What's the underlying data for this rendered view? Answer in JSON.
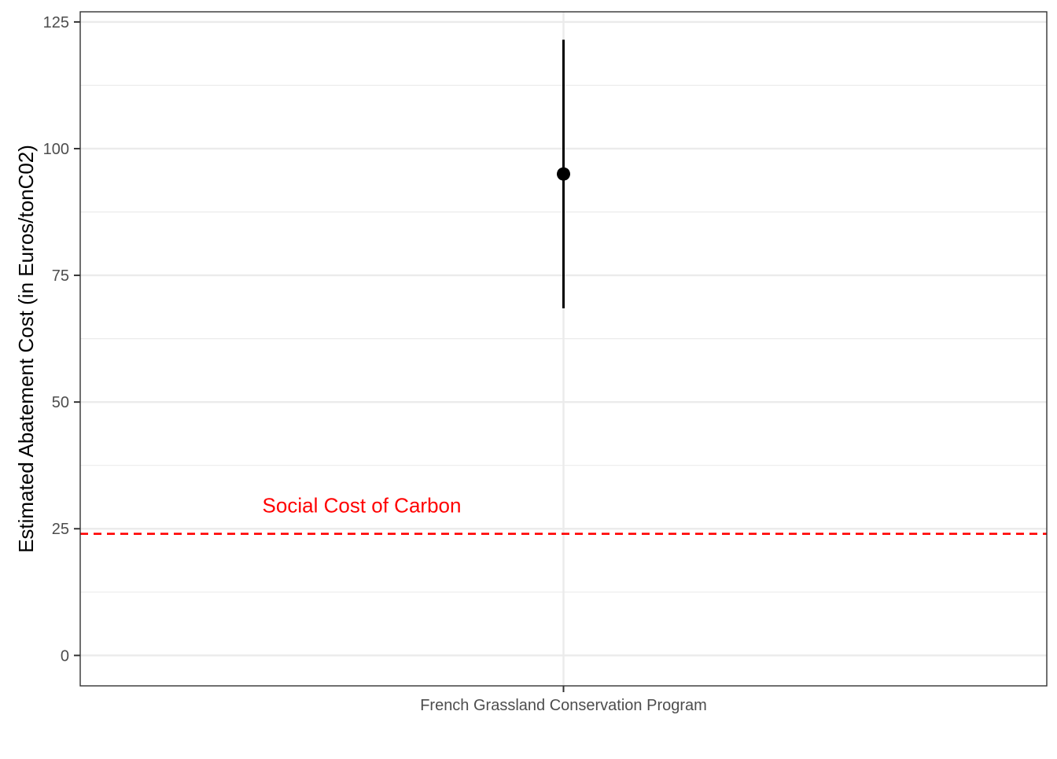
{
  "chart_data": {
    "type": "errorbar",
    "title": "",
    "xlabel": "",
    "ylabel": "Estimated Abatement Cost (in Euros/tonC02)",
    "categories": [
      "French Grassland Conservation Program"
    ],
    "points": [
      {
        "category": "French Grassland Conservation Program",
        "value": 95,
        "lower": 68.5,
        "upper": 121.5
      }
    ],
    "ylim": [
      -6,
      127
    ],
    "yticks": [
      0,
      25,
      50,
      75,
      100,
      125
    ],
    "grid": true,
    "reference_line": {
      "value": 24,
      "label": "Social Cost of Carbon",
      "color": "#ff0000",
      "style": "dashed"
    },
    "colors": {
      "point": "#000000",
      "gridline": "#ebebeb",
      "panel_border": "#333333",
      "axis_text": "#4d4d4d"
    }
  }
}
